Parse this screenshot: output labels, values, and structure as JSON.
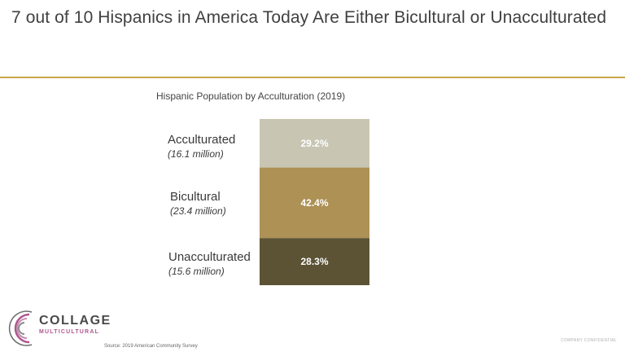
{
  "slide": {
    "title": "7 out of 10 Hispanics in America Today Are Either Bicultural or Unacculturated",
    "source": "Source: 2019 American Community Survey",
    "confidential": "COMPANY CONFIDENTIAL"
  },
  "logo": {
    "line1": "COLLAGE",
    "line2": "MULTICULTURAL"
  },
  "colors": {
    "rule": "#c9a646",
    "acculturated": "#c8c5b3",
    "bicultural": "#ad9155",
    "unacculturated": "#5c5335"
  },
  "chart_data": {
    "type": "bar",
    "title": "Hispanic Population by Acculturation (2019)",
    "stacked": true,
    "categories": [
      "Acculturated",
      "Bicultural",
      "Unacculturated"
    ],
    "sublabels": [
      "(16.1 million)",
      "(23.4 million)",
      "(15.6 million)"
    ],
    "values": [
      29.2,
      42.4,
      28.3
    ],
    "data_labels": [
      "29.2%",
      "42.4%",
      "28.3%"
    ],
    "unit": "%"
  }
}
